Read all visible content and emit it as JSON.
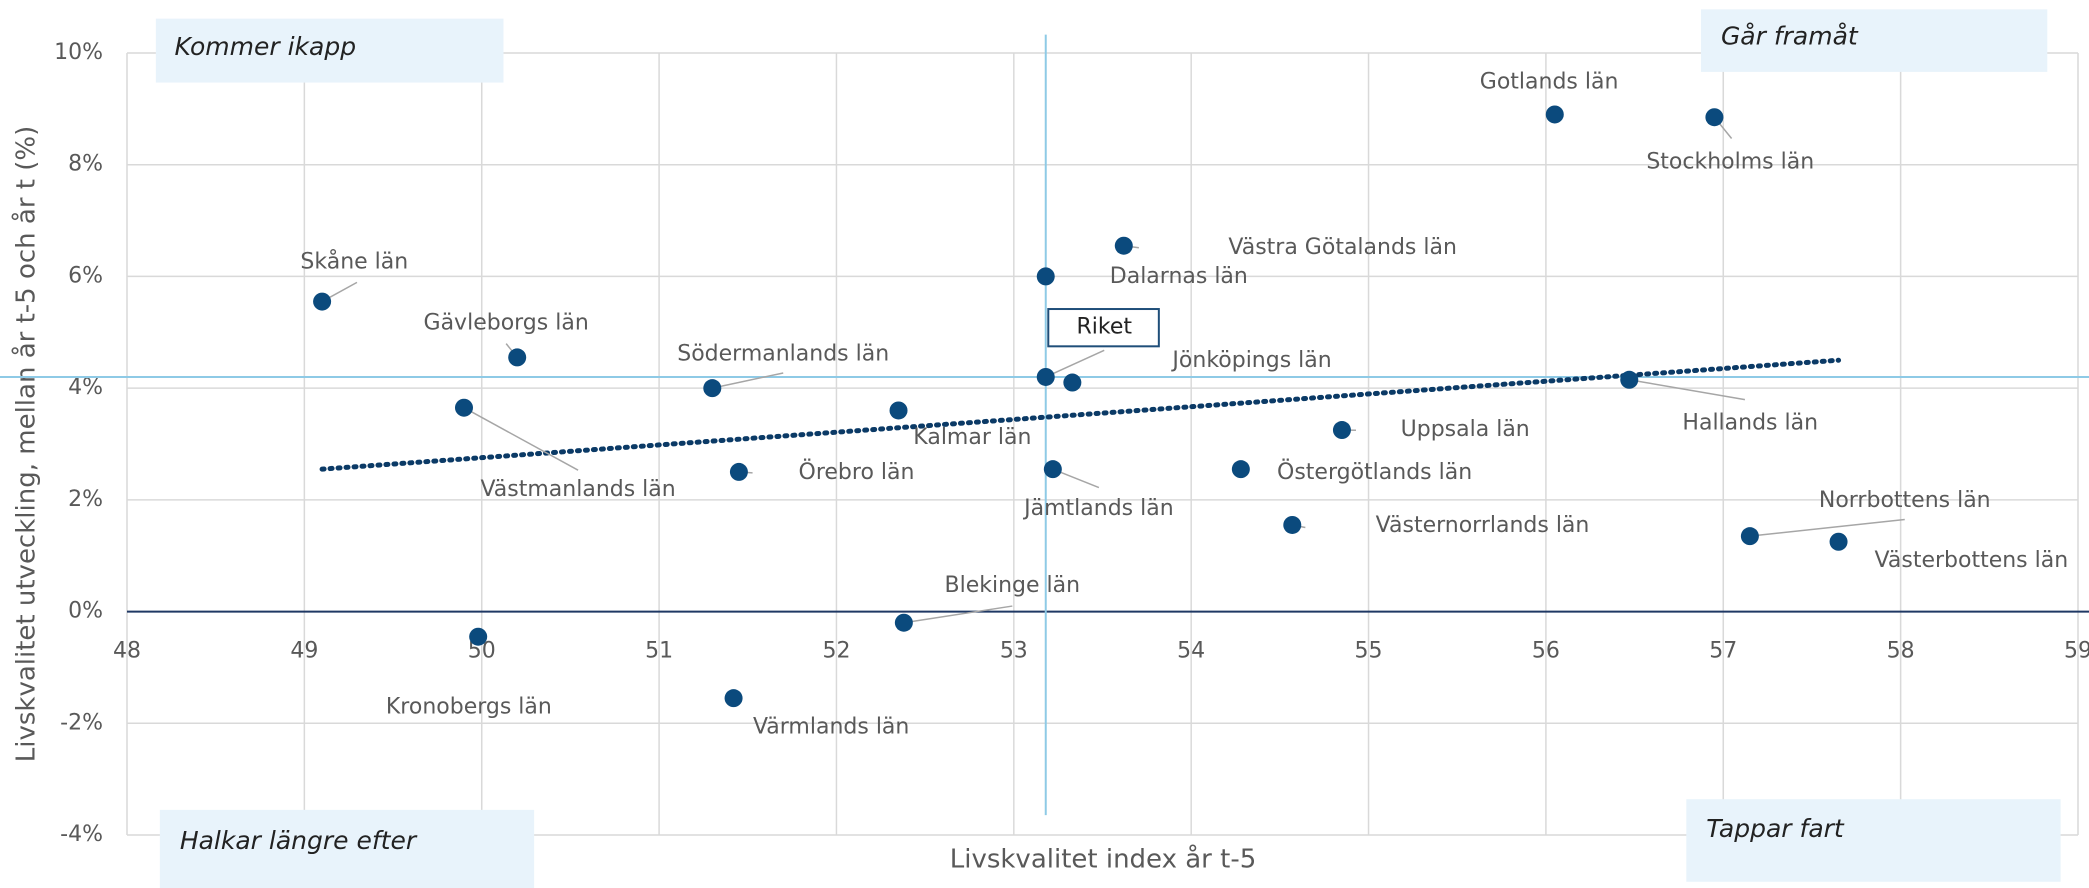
{
  "chart_data": {
    "type": "scatter",
    "xlabel": "Livskvalitet index år t-5",
    "ylabel": "Livskvalitet utveckling, mellan år t-5 och år t (%)",
    "quadrants": [
      "Kommer ikapp",
      "Går framåt",
      "Halkar längre efter",
      "Tappar fart"
    ],
    "labels": [
      "Gotlands län",
      "Stockholms län",
      "Västra Götalands län",
      "Dalarnas län",
      "Skåne län",
      "Gävleborgs län",
      "Riket",
      "Jönköpings län",
      "Södermanlands län",
      "Hallands län",
      "Västmanlands län",
      "Kalmar län",
      "Uppsala län",
      "Örebro län",
      "Jämtlands län",
      "Östergötlands län",
      "Västernorrlands län",
      "Norrbottens län",
      "Västerbottens län",
      "Blekinge län",
      "Kronobergs län",
      "Värmlands län"
    ],
    "x": [
      56.05,
      56.95,
      53.62,
      53.18,
      49.1,
      50.2,
      53.18,
      53.33,
      51.3,
      56.47,
      49.9,
      52.35,
      54.85,
      51.45,
      53.22,
      54.28,
      54.57,
      57.15,
      57.65,
      52.38,
      49.98,
      51.42
    ],
    "values": [
      8.9,
      8.85,
      6.55,
      6.0,
      5.55,
      4.55,
      4.2,
      4.1,
      4.0,
      4.15,
      3.65,
      3.6,
      3.25,
      2.5,
      2.55,
      2.55,
      1.55,
      1.35,
      1.25,
      -0.2,
      -0.45,
      -1.55
    ],
    "color": "#0b4a7d",
    "reference_lines": {
      "x": 53.18,
      "y": 4.2,
      "color": "#8ecae6"
    },
    "trendline": {
      "x": [
        49.1,
        57.65
      ],
      "values": [
        2.55,
        4.5
      ],
      "color": "#0b3a66"
    },
    "xlim": [
      48,
      59
    ],
    "xticks": [
      48,
      49,
      50,
      51,
      52,
      53,
      54,
      55,
      56,
      57,
      58,
      59
    ],
    "ylim": [
      -4,
      10
    ],
    "yticks": [
      {
        "value": -4,
        "label": "-4%"
      },
      {
        "value": -2,
        "label": "-2%"
      },
      {
        "value": 0,
        "label": "0%"
      },
      {
        "value": 2,
        "label": "2%"
      },
      {
        "value": 4,
        "label": "4%"
      },
      {
        "value": 6,
        "label": "6%"
      },
      {
        "value": 8,
        "label": "8%"
      },
      {
        "value": 10,
        "label": "10%"
      }
    ],
    "grid": true
  }
}
